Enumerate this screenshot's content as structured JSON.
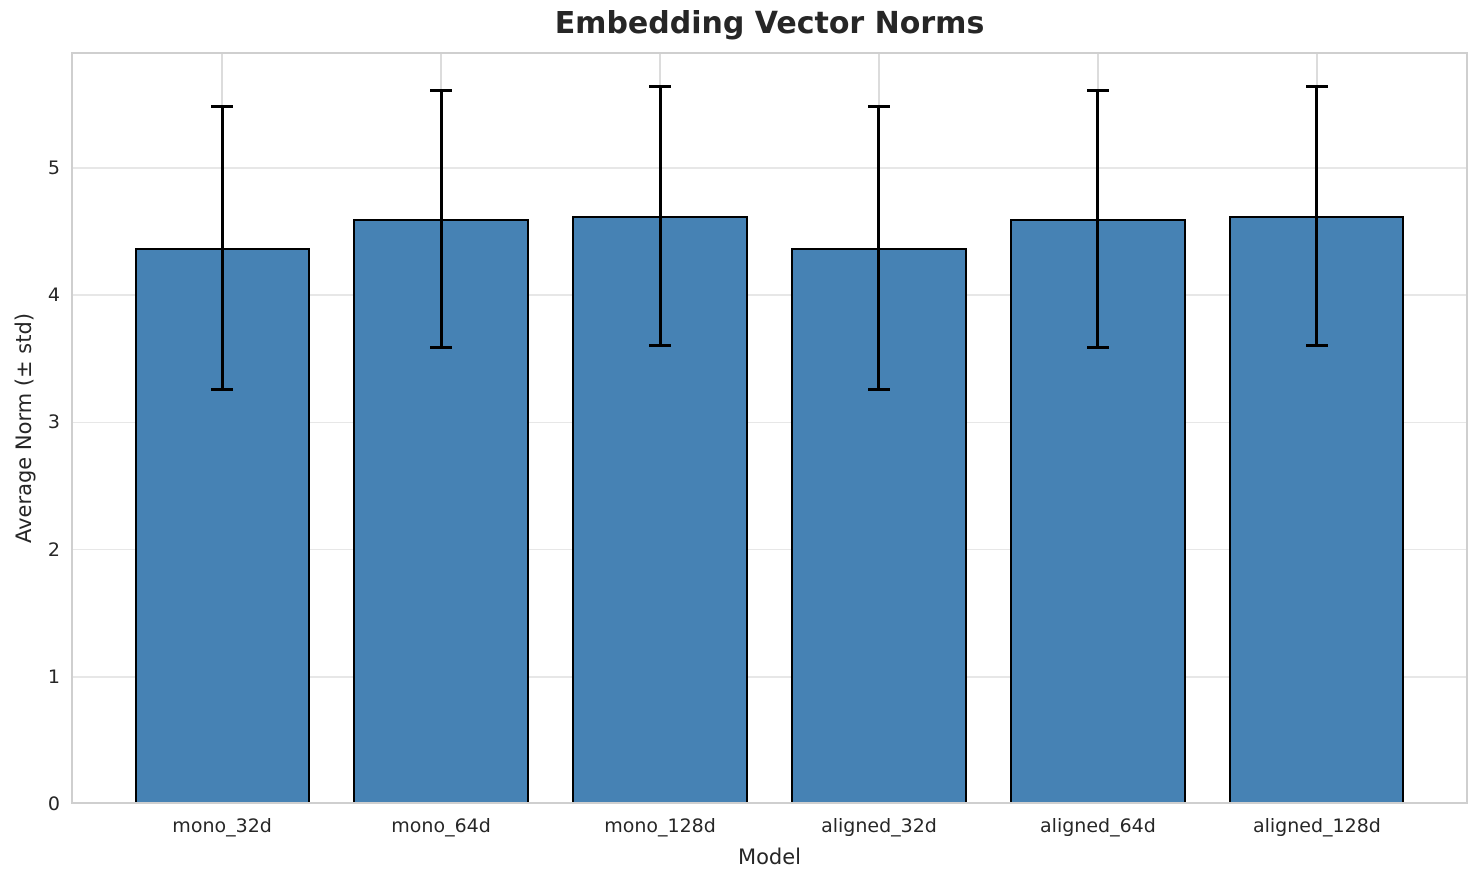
{
  "figure": {
    "title": "Embedding Vector Norms",
    "xlabel": "Model",
    "ylabel": "Average Norm (± std)"
  },
  "chart_data": {
    "type": "bar",
    "title": "Embedding Vector Norms",
    "xlabel": "Model",
    "ylabel": "Average Norm (± std)",
    "categories": [
      "mono_32d",
      "mono_64d",
      "mono_128d",
      "aligned_32d",
      "aligned_64d",
      "aligned_128d"
    ],
    "values": [
      4.37,
      4.6,
      4.62,
      4.37,
      4.6,
      4.62
    ],
    "errors": [
      1.11,
      1.01,
      1.02,
      1.11,
      1.01,
      1.02
    ],
    "error_upper": [
      5.48,
      5.61,
      5.64,
      5.48,
      5.61,
      5.64
    ],
    "error_lower": [
      3.26,
      3.59,
      3.6,
      3.26,
      3.59,
      3.6
    ],
    "yticks": [
      0,
      1,
      2,
      3,
      4,
      5
    ],
    "ylim": [
      0,
      5.91
    ],
    "xlim": [
      -0.69,
      5.69
    ],
    "bar_width": 0.8,
    "grid": true,
    "legend": "none",
    "colors": {
      "bar_fill": "#4682b4",
      "bar_edge": "#000000",
      "error_bar": "#000000",
      "grid_h": "#e7e7e7",
      "grid_v": "#dcdcdc",
      "spine": "#cfcfcf",
      "text": "#262626"
    }
  }
}
